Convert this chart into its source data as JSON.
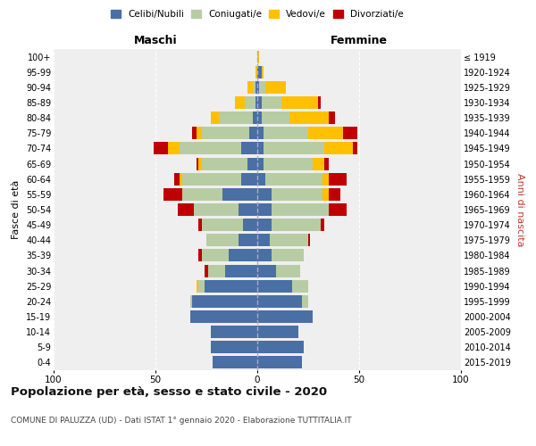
{
  "age_groups": [
    "0-4",
    "5-9",
    "10-14",
    "15-19",
    "20-24",
    "25-29",
    "30-34",
    "35-39",
    "40-44",
    "45-49",
    "50-54",
    "55-59",
    "60-64",
    "65-69",
    "70-74",
    "75-79",
    "80-84",
    "85-89",
    "90-94",
    "95-99",
    "100+"
  ],
  "birth_years": [
    "2015-2019",
    "2010-2014",
    "2005-2009",
    "2000-2004",
    "1995-1999",
    "1990-1994",
    "1985-1989",
    "1980-1984",
    "1975-1979",
    "1970-1974",
    "1965-1969",
    "1960-1964",
    "1955-1959",
    "1950-1954",
    "1945-1949",
    "1940-1944",
    "1935-1939",
    "1930-1934",
    "1925-1929",
    "1920-1924",
    "≤ 1919"
  ],
  "colors": {
    "celibi": "#4a6fa5",
    "coniugati": "#b8cca4",
    "vedovi": "#ffc000",
    "divorziati": "#c00000"
  },
  "maschi": {
    "celibi": [
      22,
      23,
      23,
      33,
      32,
      26,
      16,
      14,
      9,
      7,
      9,
      17,
      8,
      5,
      8,
      4,
      2,
      1,
      1,
      0,
      0
    ],
    "coniugati": [
      0,
      0,
      0,
      0,
      1,
      3,
      8,
      13,
      16,
      20,
      22,
      20,
      29,
      22,
      30,
      23,
      17,
      5,
      1,
      0,
      0
    ],
    "vedovi": [
      0,
      0,
      0,
      0,
      0,
      1,
      0,
      0,
      0,
      0,
      0,
      0,
      1,
      2,
      6,
      3,
      4,
      5,
      3,
      1,
      0
    ],
    "divorziati": [
      0,
      0,
      0,
      0,
      0,
      0,
      2,
      2,
      0,
      2,
      8,
      9,
      3,
      1,
      7,
      2,
      0,
      0,
      0,
      0,
      0
    ]
  },
  "femmine": {
    "celibi": [
      22,
      23,
      20,
      27,
      22,
      17,
      9,
      7,
      6,
      7,
      7,
      7,
      4,
      3,
      3,
      3,
      2,
      2,
      1,
      2,
      0
    ],
    "coniugati": [
      0,
      0,
      0,
      0,
      3,
      8,
      12,
      16,
      19,
      24,
      28,
      25,
      28,
      24,
      30,
      22,
      14,
      10,
      3,
      0,
      0
    ],
    "vedovi": [
      0,
      0,
      0,
      0,
      0,
      0,
      0,
      0,
      0,
      0,
      0,
      3,
      3,
      6,
      14,
      17,
      19,
      18,
      10,
      1,
      1
    ],
    "divorziati": [
      0,
      0,
      0,
      0,
      0,
      0,
      0,
      0,
      1,
      2,
      9,
      6,
      9,
      2,
      2,
      7,
      3,
      1,
      0,
      0,
      0
    ]
  },
  "title": "Popolazione per età, sesso e stato civile - 2020",
  "subtitle": "COMUNE DI PALUZZA (UD) - Dati ISTAT 1° gennaio 2020 - Elaborazione TUTTITALIA.IT",
  "xlabel_left": "Maschi",
  "xlabel_right": "Femmine",
  "ylabel_left": "Fasce di età",
  "ylabel_right": "Anni di nascita",
  "legend_labels": [
    "Celibi/Nubili",
    "Coniugati/e",
    "Vedovi/e",
    "Divorziati/e"
  ],
  "xlim": 100,
  "bg_color": "#ffffff",
  "plot_bg": "#efefef"
}
